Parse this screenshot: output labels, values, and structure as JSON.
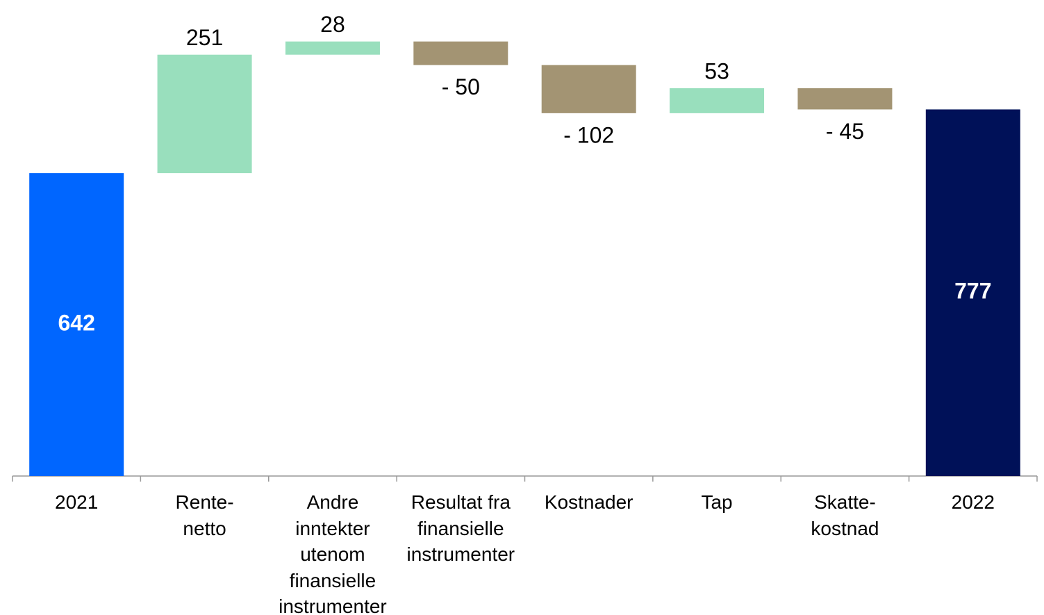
{
  "chart_data": {
    "type": "waterfall",
    "categories": [
      "2021",
      "Rente-\nnetto",
      "Andre\ninntekter\nutenom\nfinansielle\ninstrumenter",
      "Resultat fra\nfinansielle\ninstrumenter",
      "Kostnader",
      "Tap",
      "Skatte-\nkostnad",
      "2022"
    ],
    "values": [
      642,
      251,
      28,
      -50,
      -102,
      53,
      -45,
      777
    ],
    "value_labels": [
      "642",
      "251",
      "28",
      "- 50",
      "- 102",
      "53",
      "- 45",
      "777"
    ],
    "totals": [
      true,
      false,
      false,
      false,
      false,
      false,
      false,
      true
    ],
    "colors": {
      "start": "#0066ff",
      "end": "#001158",
      "increase": "#99dfbd",
      "decrease": "#a39473"
    },
    "ylim": [
      0,
      950
    ]
  }
}
